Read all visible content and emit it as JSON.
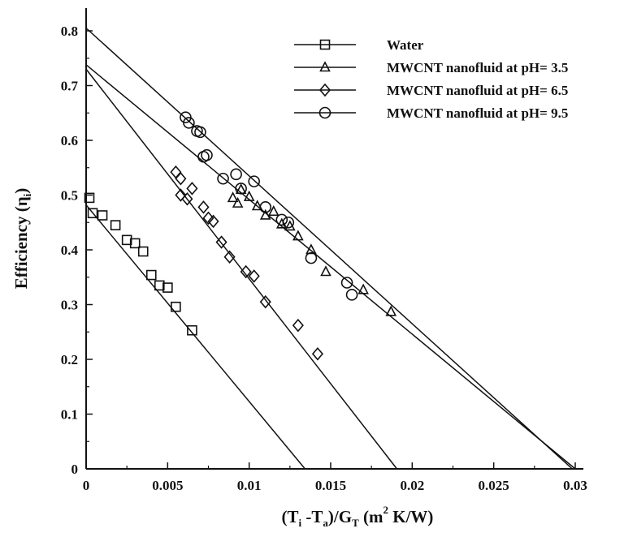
{
  "chart_data": {
    "type": "scatter",
    "xlabel": {
      "pre": "(T",
      "sub1": "i",
      "mid": " -T",
      "sub2": "a",
      "post1": ")/G",
      "sub3": "T",
      "post2": " (m",
      "sup": "2",
      "post3": " K/W)"
    },
    "ylabel": {
      "pre": "Efficiency (η",
      "sub": "i",
      "post": ")"
    },
    "xlim": [
      0,
      0.03
    ],
    "ylim": [
      0,
      0.8
    ],
    "x_ticks": [
      "0",
      "0.005",
      "0.01",
      "0.015",
      "0.02",
      "0.025",
      "0.03"
    ],
    "y_ticks": [
      "0",
      "0.1",
      "0.2",
      "0.3",
      "0.4",
      "0.5",
      "0.6",
      "0.7",
      "0.8"
    ],
    "legend_position": "top-right",
    "grid": false,
    "series": [
      {
        "name": "Water",
        "marker": "square",
        "fit": {
          "intercept": 0.482,
          "slope": -35.9
        },
        "points": [
          [
            0.0002,
            0.495
          ],
          [
            0.0004,
            0.467
          ],
          [
            0.001,
            0.463
          ],
          [
            0.0018,
            0.445
          ],
          [
            0.0025,
            0.418
          ],
          [
            0.003,
            0.412
          ],
          [
            0.0035,
            0.397
          ],
          [
            0.004,
            0.354
          ],
          [
            0.0045,
            0.335
          ],
          [
            0.005,
            0.331
          ],
          [
            0.0055,
            0.296
          ],
          [
            0.0065,
            0.253
          ]
        ]
      },
      {
        "name": "MWCNT nanofluid at pH= 3.5",
        "marker": "triangle",
        "fit": {
          "intercept": 0.738,
          "slope": -24.6
        },
        "points": [
          [
            0.009,
            0.495
          ],
          [
            0.0093,
            0.485
          ],
          [
            0.0095,
            0.51
          ],
          [
            0.01,
            0.497
          ],
          [
            0.0105,
            0.48
          ],
          [
            0.011,
            0.463
          ],
          [
            0.0115,
            0.47
          ],
          [
            0.012,
            0.447
          ],
          [
            0.0125,
            0.443
          ],
          [
            0.013,
            0.425
          ],
          [
            0.0138,
            0.4
          ],
          [
            0.0147,
            0.36
          ],
          [
            0.017,
            0.327
          ],
          [
            0.0187,
            0.287
          ]
        ]
      },
      {
        "name": "MWCNT nanofluid at pH= 6.5",
        "marker": "diamond",
        "fit": {
          "intercept": 0.73,
          "slope": -38.3
        },
        "points": [
          [
            0.0055,
            0.542
          ],
          [
            0.0058,
            0.53
          ],
          [
            0.0058,
            0.5
          ],
          [
            0.0062,
            0.493
          ],
          [
            0.0065,
            0.512
          ],
          [
            0.0072,
            0.478
          ],
          [
            0.0075,
            0.458
          ],
          [
            0.0078,
            0.452
          ],
          [
            0.0083,
            0.414
          ],
          [
            0.0088,
            0.387
          ],
          [
            0.0098,
            0.36
          ],
          [
            0.0103,
            0.352
          ],
          [
            0.011,
            0.305
          ],
          [
            0.013,
            0.262
          ],
          [
            0.0142,
            0.21
          ]
        ]
      },
      {
        "name": "MWCNT nanofluid at pH= 9.5",
        "marker": "circle",
        "fit": {
          "intercept": 0.805,
          "slope": -27.0
        },
        "points": [
          [
            0.0061,
            0.642
          ],
          [
            0.0063,
            0.632
          ],
          [
            0.0068,
            0.617
          ],
          [
            0.007,
            0.615
          ],
          [
            0.0072,
            0.57
          ],
          [
            0.0074,
            0.573
          ],
          [
            0.0084,
            0.53
          ],
          [
            0.0092,
            0.538
          ],
          [
            0.0095,
            0.512
          ],
          [
            0.0103,
            0.525
          ],
          [
            0.011,
            0.478
          ],
          [
            0.012,
            0.455
          ],
          [
            0.0124,
            0.45
          ],
          [
            0.0138,
            0.385
          ],
          [
            0.016,
            0.34
          ],
          [
            0.0163,
            0.318
          ]
        ]
      }
    ]
  }
}
